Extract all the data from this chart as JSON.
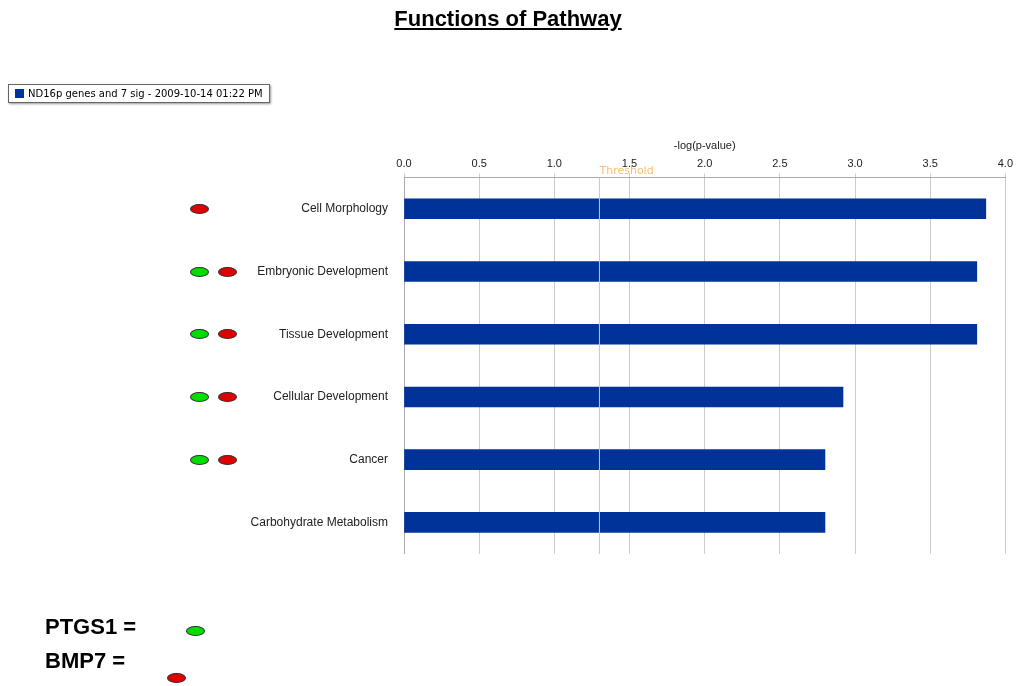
{
  "chart_data": {
    "type": "bar",
    "orientation": "horizontal",
    "title": "Functions of Pathway",
    "xlabel": "-log(p-value)",
    "categories": [
      "Cell Morphology",
      "Embryonic Development",
      "Tissue Development",
      "Cellular Development",
      "Cancer",
      "Carbohydrate Metabolism"
    ],
    "series": [
      {
        "name": "ND16p genes and 7 sig - 2009-10-14 01:22 PM",
        "color": "#003399",
        "values": [
          3.87,
          3.81,
          3.81,
          2.92,
          2.8,
          2.8
        ]
      }
    ],
    "xlim": [
      0,
      4.0
    ],
    "xticks": [
      {
        "value": 0,
        "label": "0.0"
      },
      {
        "value": 0.5,
        "label": "0.5"
      },
      {
        "value": 1,
        "label": "1.0"
      },
      {
        "value": 1.5,
        "label": "1.5"
      },
      {
        "value": 2,
        "label": "2.0"
      },
      {
        "value": 2.5,
        "label": "2.5"
      },
      {
        "value": 3,
        "label": "3.0"
      },
      {
        "value": 3.5,
        "label": "3.5"
      },
      {
        "value": 4,
        "label": "4.0"
      }
    ],
    "grid": "x",
    "legend": "top left",
    "ref_lines": [
      {
        "axis": "x",
        "value": 1.3,
        "label": "Threshold",
        "color": "#f8c070"
      }
    ],
    "annotations": [
      "PTGS1 =",
      "BMP7 ="
    ]
  }
}
